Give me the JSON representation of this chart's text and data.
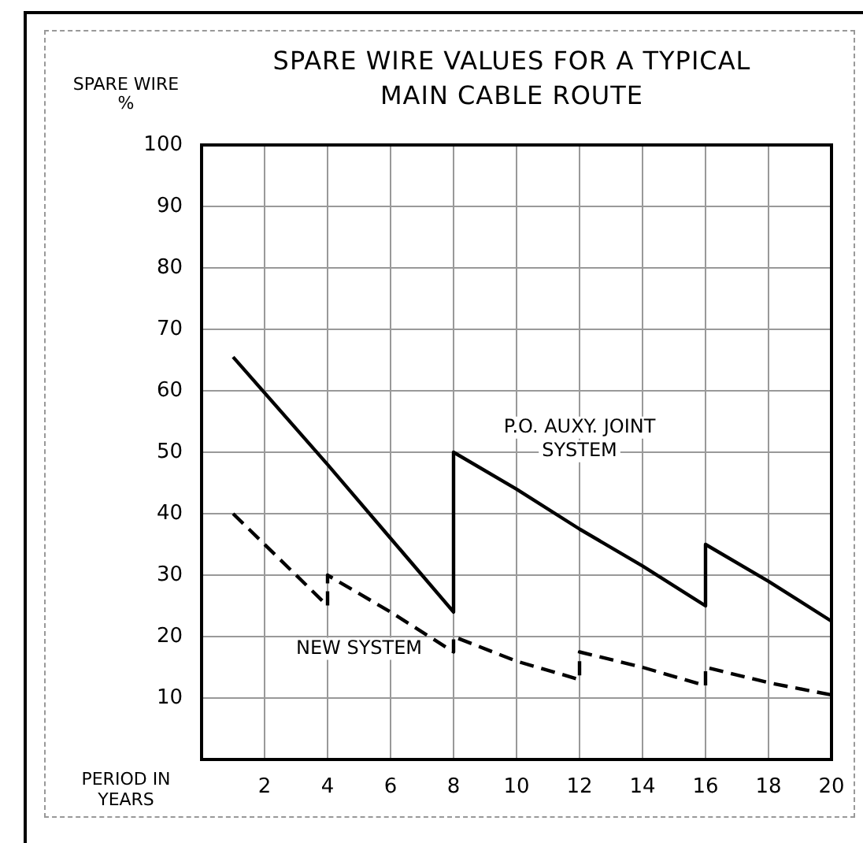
{
  "chart_data": {
    "type": "line",
    "title": "SPARE WIRE VALUES FOR A TYPICAL MAIN CABLE ROUTE",
    "xlabel": "PERIOD IN YEARS",
    "ylabel": "SPARE WIRE %",
    "xlim": [
      0,
      20
    ],
    "xticks": [
      2,
      4,
      6,
      8,
      10,
      12,
      14,
      16,
      18,
      20
    ],
    "ylim": [
      0,
      100
    ],
    "yticks": [
      10,
      20,
      30,
      40,
      50,
      60,
      70,
      80,
      90,
      100
    ],
    "grid": true,
    "legend": false,
    "marker": "none",
    "series": [
      {
        "name": "P.O. AUXY. JOINT SYSTEM",
        "color": "#000000",
        "line_style": "solid",
        "x": [
          1,
          4,
          6,
          8,
          8,
          10,
          12,
          14,
          16,
          16,
          18,
          20
        ],
        "values": [
          65.5,
          48,
          36,
          24,
          50,
          44,
          37.5,
          31.5,
          25,
          35,
          29,
          22.5
        ]
      },
      {
        "name": "NEW SYSTEM",
        "color": "#000000",
        "line_style": "dashed",
        "x": [
          1,
          2,
          3,
          4,
          4,
          6,
          8,
          8,
          10,
          12,
          12,
          14,
          16,
          16,
          18,
          20
        ],
        "values": [
          40,
          35,
          30,
          25,
          30,
          24,
          17.5,
          20,
          16,
          13,
          17.5,
          15,
          12,
          15,
          12.5,
          10.5
        ]
      }
    ]
  }
}
